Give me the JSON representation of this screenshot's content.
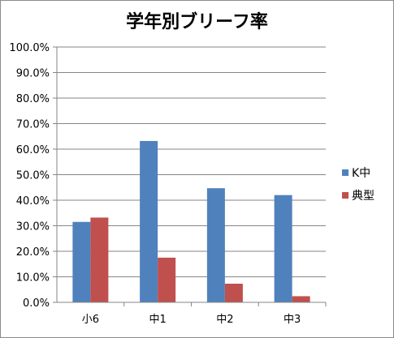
{
  "chart_data": {
    "type": "bar",
    "title": "学年別ブリーフ率",
    "categories": [
      "小6",
      "中1",
      "中2",
      "中3"
    ],
    "y_tick_labels": [
      "0.0%",
      "10.0%",
      "20.0%",
      "30.0%",
      "40.0%",
      "50.0%",
      "60.0%",
      "70.0%",
      "80.0%",
      "90.0%",
      "100.0%"
    ],
    "ylim": [
      0,
      100
    ],
    "grid": true,
    "legend_position": "right",
    "series": [
      {
        "name": "K中",
        "color": "#4f81bd",
        "values": [
          31.5,
          63.2,
          44.7,
          42.0
        ]
      },
      {
        "name": "典型",
        "color": "#c0504d",
        "values": [
          33.2,
          17.5,
          7.3,
          2.4
        ]
      }
    ]
  }
}
